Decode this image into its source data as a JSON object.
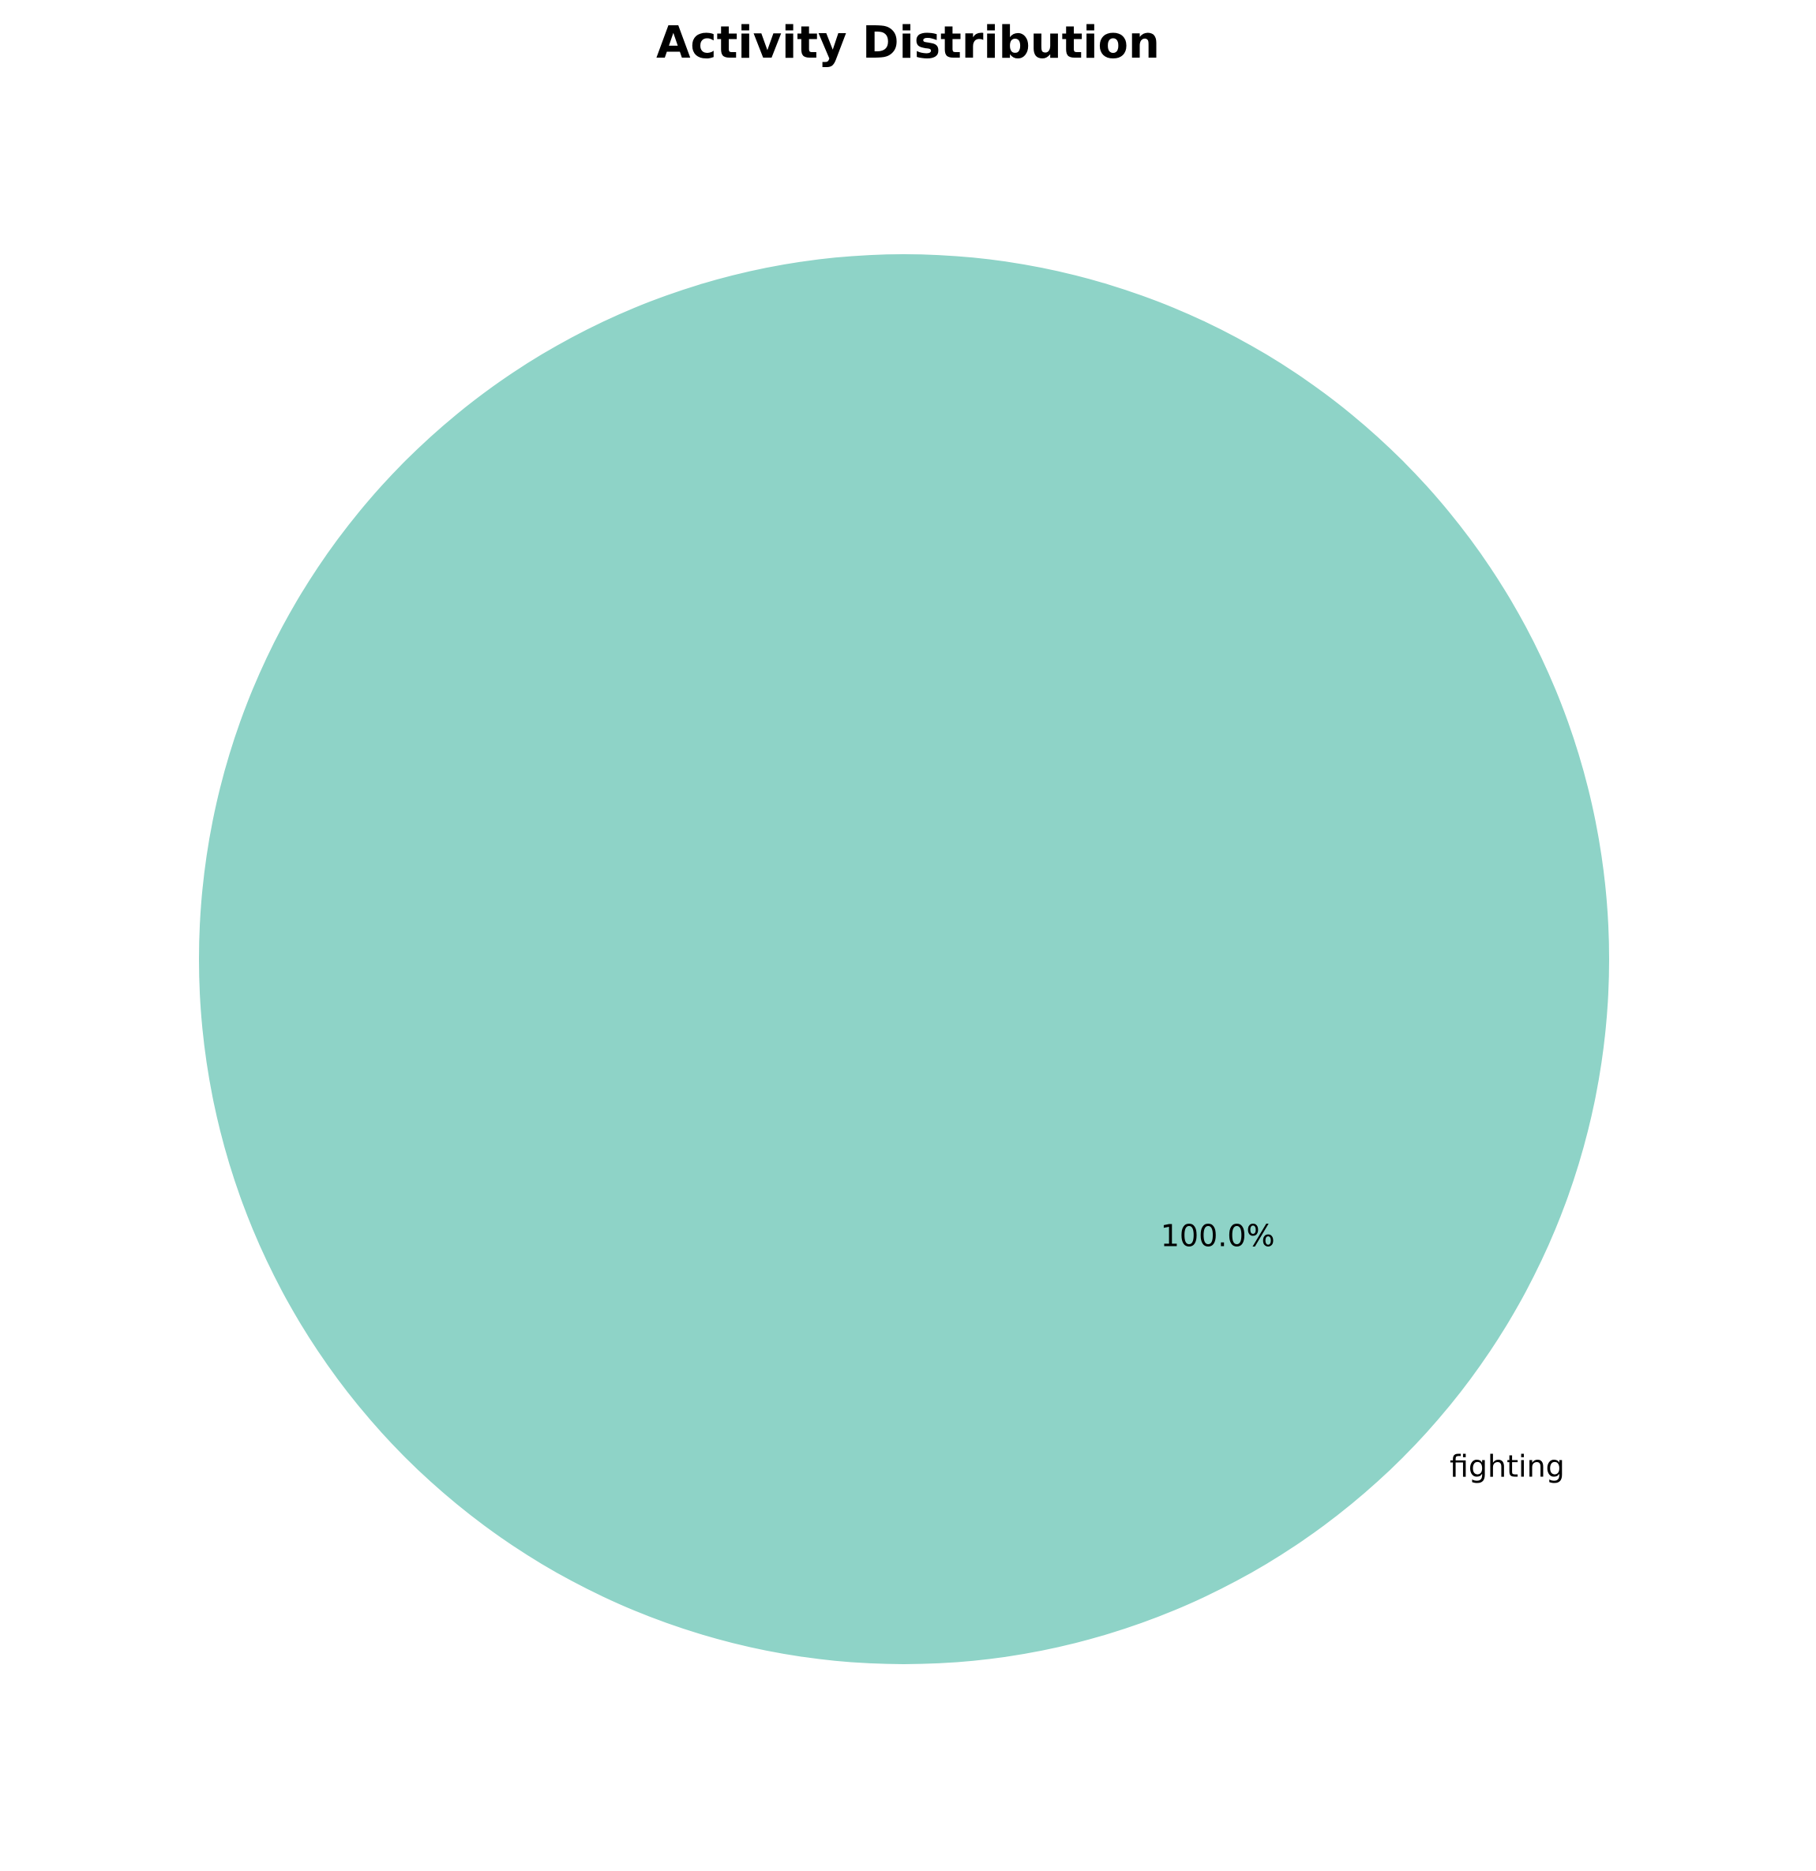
{
  "chart_data": {
    "type": "pie",
    "title": "Activity Distribution",
    "categories": [
      "fighting"
    ],
    "values": [
      100.0
    ],
    "percent_labels": [
      "100.0%"
    ],
    "colors": [
      "#8ed3c7"
    ],
    "legend": "none"
  }
}
